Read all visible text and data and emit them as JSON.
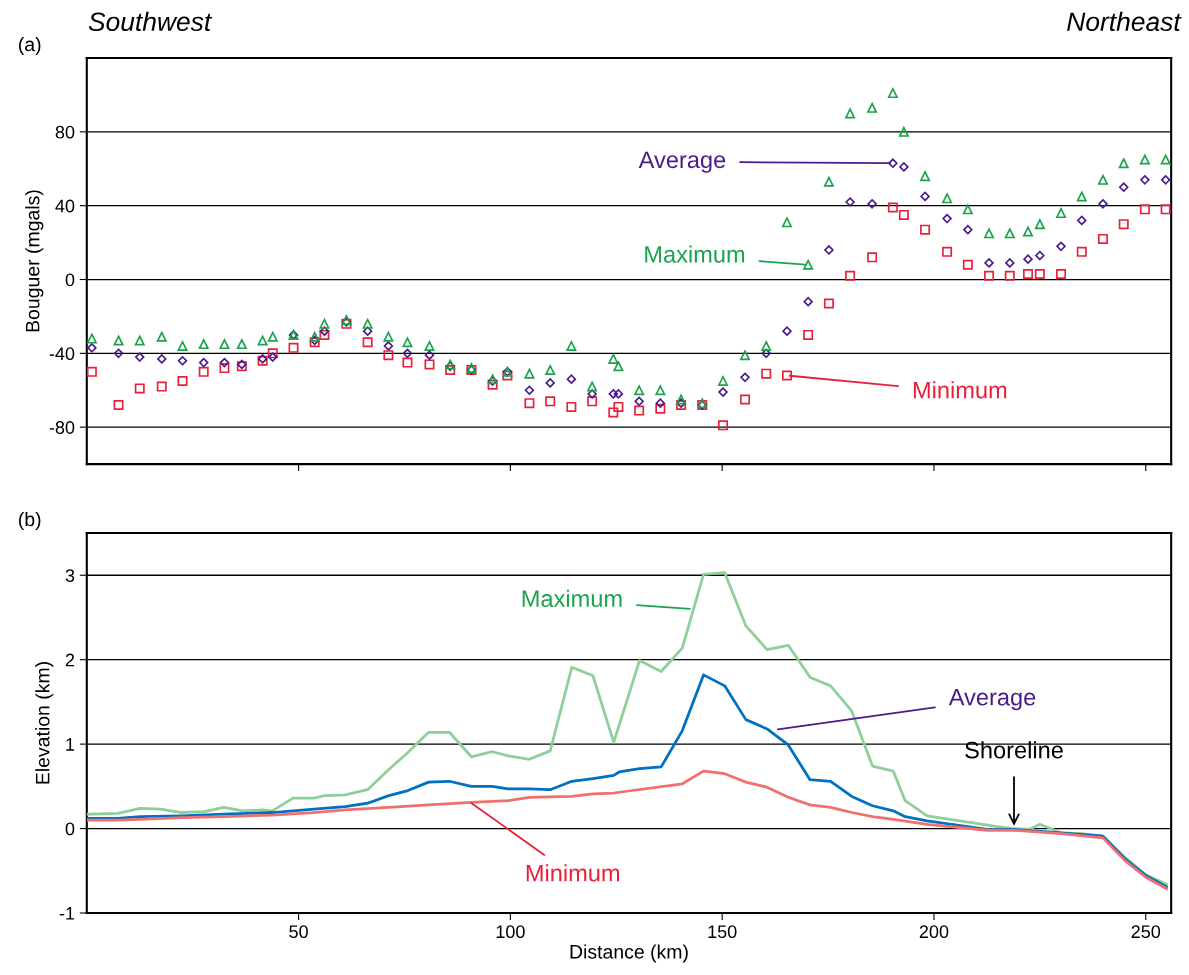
{
  "chart_data": [
    {
      "type": "scatter",
      "title": "(a)",
      "ylabel": "Bouguer (mgals)",
      "xlim": [
        0,
        256
      ],
      "ylim": [
        -100,
        120
      ],
      "xticks": [
        50,
        100,
        150,
        200,
        250
      ],
      "yticks": [
        -80,
        -40,
        0,
        40,
        80
      ],
      "grid": "y",
      "tick_labels": "y",
      "x": [
        1.2,
        7.5,
        12.5,
        17.7,
        22.6,
        27.6,
        32.5,
        36.6,
        41.5,
        43.9,
        48.8,
        53.8,
        56.1,
        61.3,
        66.3,
        71.2,
        75.7,
        80.9,
        85.8,
        90.8,
        95.8,
        99.3,
        104.5,
        109.4,
        114.4,
        119.3,
        124.3,
        125.5,
        130.4,
        135.4,
        140.3,
        145.3,
        150.2,
        155.4,
        160.4,
        165.3,
        170.3,
        175.2,
        180.2,
        185.4,
        190.3,
        192.9,
        197.9,
        203.1,
        208.0,
        213.0,
        217.9,
        222.2,
        225.0,
        230.0,
        234.9,
        239.9,
        244.8,
        249.8,
        254.7
      ],
      "series": [
        {
          "color": "#1aa34a",
          "marker": "triangle",
          "values": [
            -32,
            -33,
            -33,
            -31,
            -36,
            -35,
            -35,
            -35,
            -33,
            -31,
            -30,
            -31,
            -24,
            -22,
            -24,
            -31,
            -34,
            -36,
            -46,
            -48,
            -54,
            -50,
            -51,
            -49,
            -36,
            -58,
            -43,
            -47,
            -60,
            -60,
            -65,
            -67,
            -55,
            -41,
            -36,
            31,
            8,
            53,
            90,
            93,
            101,
            80,
            56,
            44,
            38,
            25,
            25,
            26,
            30,
            36,
            45,
            54,
            63,
            65,
            65
          ]
        },
        {
          "color": "#4b1c8c",
          "marker": "diamond",
          "values": [
            -37,
            -40,
            -42,
            -43,
            -44,
            -45,
            -45,
            -46,
            -43,
            -42,
            -30,
            -33,
            -28,
            -23,
            -28,
            -36,
            -40,
            -41,
            -47,
            -49,
            -55,
            -50,
            -60,
            -56,
            -54,
            -62,
            -62,
            -62,
            -66,
            -67,
            -67,
            -68,
            -61,
            -53,
            -40,
            -28,
            -12,
            16,
            42,
            41,
            63,
            61,
            45,
            33,
            27,
            9,
            9,
            11,
            13,
            18,
            32,
            41,
            50,
            54,
            54
          ]
        },
        {
          "color": "#e8203a",
          "marker": "square",
          "values": [
            -50,
            -68,
            -59,
            -58,
            -55,
            -50,
            -48,
            -47,
            -44,
            -40,
            -37,
            -34,
            -30,
            -24,
            -34,
            -41,
            -45,
            -46,
            -49,
            -49,
            -57,
            -52,
            -67,
            -66,
            -69,
            -66,
            -72,
            -69,
            -71,
            -70,
            -68,
            -68,
            -79,
            -65,
            -51,
            -52,
            -30,
            -13,
            2,
            12,
            39,
            35,
            27,
            15,
            8,
            2,
            2,
            3,
            3,
            3,
            15,
            22,
            30,
            38,
            38
          ]
        }
      ],
      "annotations": [
        "Southwest",
        "Northeast",
        {
          "text": "Maximum",
          "x": 170.3,
          "y": 8
        },
        {
          "text": "Average",
          "x": 190.3,
          "y": 63
        },
        {
          "text": "Minimum",
          "x": 165.3,
          "y": -52
        }
      ]
    },
    {
      "type": "line",
      "title": "(b)",
      "xlabel": "Distance (km)",
      "ylabel": "Elevation (km)",
      "xlim": [
        0,
        256
      ],
      "ylim": [
        -1,
        3.5
      ],
      "xticks": [
        50,
        100,
        150,
        200,
        250
      ],
      "yticks": [
        -1,
        0,
        1,
        2,
        3
      ],
      "grid": "y",
      "series": [
        {
          "color": "#8fcf9a",
          "x": [
            0.2,
            7.3,
            12.6,
            17.4,
            22.5,
            27.8,
            32.3,
            36.8,
            41.7,
            43.8,
            48.7,
            53.6,
            56.1,
            61.0,
            66.3,
            71.3,
            75.8,
            80.7,
            85.6,
            90.8,
            95.7,
            99.5,
            104.5,
            109.4,
            114.5,
            119.5,
            124.4,
            130.5,
            135.6,
            140.6,
            145.6,
            150.6,
            155.6,
            160.6,
            165.6,
            170.8,
            175.6,
            180.6,
            185.5,
            190.4,
            193.2,
            198.4,
            214.2,
            218.6,
            222.5,
            225.0,
            230.0,
            235.0,
            239.9,
            245.1,
            250.1,
            254.9
          ],
          "values": [
            0.17,
            0.18,
            0.24,
            0.23,
            0.19,
            0.2,
            0.25,
            0.21,
            0.22,
            0.21,
            0.36,
            0.36,
            0.39,
            0.4,
            0.46,
            0.7,
            0.9,
            1.14,
            1.14,
            0.85,
            0.91,
            0.86,
            0.82,
            0.92,
            1.91,
            1.81,
            1.02,
            1.99,
            1.86,
            2.14,
            3.01,
            3.03,
            2.4,
            2.12,
            2.17,
            1.79,
            1.69,
            1.39,
            0.74,
            0.68,
            0.33,
            0.15,
            0.03,
            0.0,
            -0.01,
            0.05,
            -0.05,
            -0.06,
            -0.09,
            -0.34,
            -0.55,
            -0.66
          ]
        },
        {
          "color": "#0070c0",
          "x": [
            0.2,
            7.3,
            12.6,
            22.5,
            32.3,
            43.8,
            48.7,
            53.6,
            61.0,
            66.3,
            71.3,
            75.8,
            80.7,
            85.6,
            90.8,
            95.7,
            99.5,
            104.5,
            109.4,
            114.5,
            119.5,
            124.4,
            125.7,
            130.5,
            135.6,
            140.6,
            145.6,
            150.6,
            155.6,
            160.6,
            165.6,
            170.7,
            175.6,
            180.6,
            185.5,
            190.4,
            193.2,
            198.4,
            212.5,
            218.6,
            230.0,
            239.9,
            245.1,
            250.1,
            254.9
          ],
          "values": [
            0.12,
            0.12,
            0.14,
            0.15,
            0.17,
            0.19,
            0.21,
            0.23,
            0.26,
            0.3,
            0.39,
            0.45,
            0.55,
            0.56,
            0.5,
            0.5,
            0.47,
            0.47,
            0.46,
            0.56,
            0.59,
            0.63,
            0.67,
            0.71,
            0.73,
            1.16,
            1.82,
            1.69,
            1.29,
            1.18,
            0.99,
            0.58,
            0.56,
            0.38,
            0.27,
            0.21,
            0.14,
            0.09,
            -0.01,
            -0.01,
            -0.05,
            -0.09,
            -0.36,
            -0.56,
            -0.69
          ]
        },
        {
          "color": "#f07070",
          "x": [
            0.2,
            7.3,
            12.6,
            22.5,
            32.3,
            43.8,
            53.6,
            61.0,
            71.3,
            80.7,
            90.8,
            99.5,
            104.5,
            114.5,
            119.5,
            124.4,
            125.7,
            140.6,
            145.6,
            150.6,
            155.6,
            160.6,
            165.6,
            170.7,
            175.6,
            180.6,
            185.5,
            190.4,
            198.4,
            212.5,
            218.6,
            230.0,
            239.9,
            245.1,
            250.1,
            254.9
          ],
          "values": [
            0.1,
            0.1,
            0.11,
            0.13,
            0.14,
            0.16,
            0.19,
            0.22,
            0.25,
            0.28,
            0.31,
            0.33,
            0.37,
            0.38,
            0.41,
            0.42,
            0.43,
            0.53,
            0.68,
            0.65,
            0.55,
            0.49,
            0.37,
            0.28,
            0.25,
            0.19,
            0.14,
            0.11,
            0.05,
            -0.02,
            -0.02,
            -0.06,
            -0.11,
            -0.38,
            -0.58,
            -0.71
          ]
        }
      ],
      "annotations": [
        {
          "text": "Maximum",
          "x": 143,
          "y": 2.6
        },
        {
          "text": "Average",
          "x": 162.5,
          "y": 1.17
        },
        {
          "text": "Minimum",
          "x": 90.3,
          "y": 0.32
        },
        {
          "text": "Shoreline",
          "x": 218.9,
          "y": 0
        }
      ]
    }
  ]
}
